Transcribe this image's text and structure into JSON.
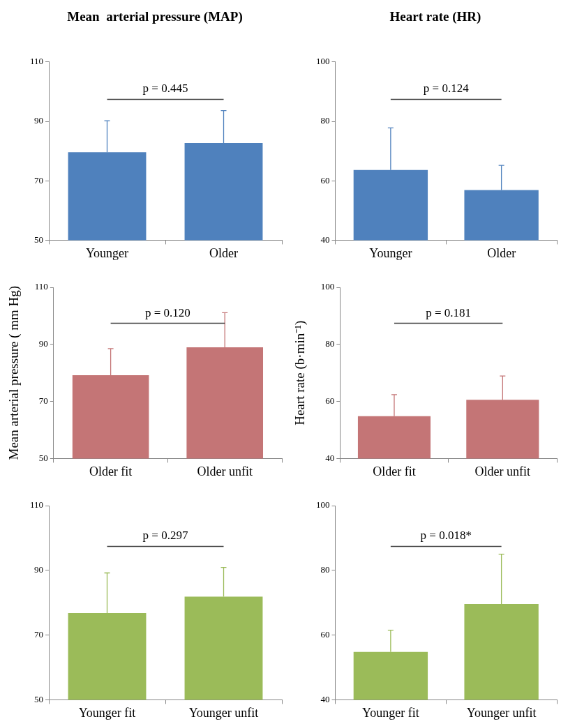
{
  "chart_data": [
    {
      "type": "bar",
      "title": "Mean  arterial pressure (MAP)",
      "categories": [
        "Younger",
        "Older"
      ],
      "series": [
        {
          "color": "#4f81bd",
          "values": [
            79.6,
            82.7
          ],
          "errors": [
            [
              79.6,
              90.2
            ],
            [
              82.7,
              93.6
            ]
          ]
        }
      ],
      "ylim": [
        50,
        110
      ],
      "yticks": [
        50,
        70,
        90,
        110
      ],
      "annotations": [
        "p = 0.445"
      ]
    },
    {
      "type": "bar",
      "title": "Heart rate (HR)",
      "categories": [
        "Younger",
        "Older"
      ],
      "series": [
        {
          "color": "#4f81bd",
          "values": [
            63.6,
            56.9
          ],
          "errors": [
            [
              63.6,
              77.8
            ],
            [
              56.9,
              65.2
            ]
          ]
        }
      ],
      "ylim": [
        40,
        100
      ],
      "yticks": [
        40,
        60,
        80,
        100
      ],
      "annotations": [
        "p = 0.124"
      ]
    },
    {
      "type": "bar",
      "ylabel": "Mean arterial pressure ( mm Hg)",
      "categories": [
        "Older fit",
        "Older unfit"
      ],
      "series": [
        {
          "color": "#c47576",
          "values": [
            79.2,
            89.0
          ],
          "errors": [
            [
              79.2,
              88.5
            ],
            [
              89.0,
              101.1
            ]
          ]
        }
      ],
      "ylim": [
        50,
        110
      ],
      "yticks": [
        50,
        70,
        90,
        110
      ],
      "annotations": [
        "p = 0.120"
      ]
    },
    {
      "type": "bar",
      "ylabel": "Heart rate (b·min⁻¹)",
      "categories": [
        "Older fit",
        "Older unfit"
      ],
      "series": [
        {
          "color": "#c47576",
          "values": [
            54.8,
            60.6
          ],
          "errors": [
            [
              54.8,
              62.4
            ],
            [
              60.6,
              68.9
            ]
          ]
        }
      ],
      "ylim": [
        40,
        100
      ],
      "yticks": [
        40,
        60,
        80,
        100
      ],
      "annotations": [
        "p = 0.181"
      ]
    },
    {
      "type": "bar",
      "categories": [
        "Younger fit",
        "Younger unfit"
      ],
      "series": [
        {
          "color": "#9bbb59",
          "values": [
            76.8,
            81.9
          ],
          "errors": [
            [
              76.8,
              89.2
            ],
            [
              81.9,
              90.9
            ]
          ]
        }
      ],
      "ylim": [
        50,
        110
      ],
      "yticks": [
        50,
        70,
        90,
        110
      ],
      "annotations": [
        "p = 0.297"
      ]
    },
    {
      "type": "bar",
      "categories": [
        "Younger fit",
        "Younger unfit"
      ],
      "series": [
        {
          "color": "#9bbb59",
          "values": [
            54.8,
            69.6
          ],
          "errors": [
            [
              54.8,
              61.5
            ],
            [
              69.6,
              85.0
            ]
          ]
        }
      ],
      "ylim": [
        40,
        100
      ],
      "yticks": [
        40,
        60,
        80,
        100
      ],
      "annotations": [
        "p = 0.018*"
      ]
    }
  ]
}
